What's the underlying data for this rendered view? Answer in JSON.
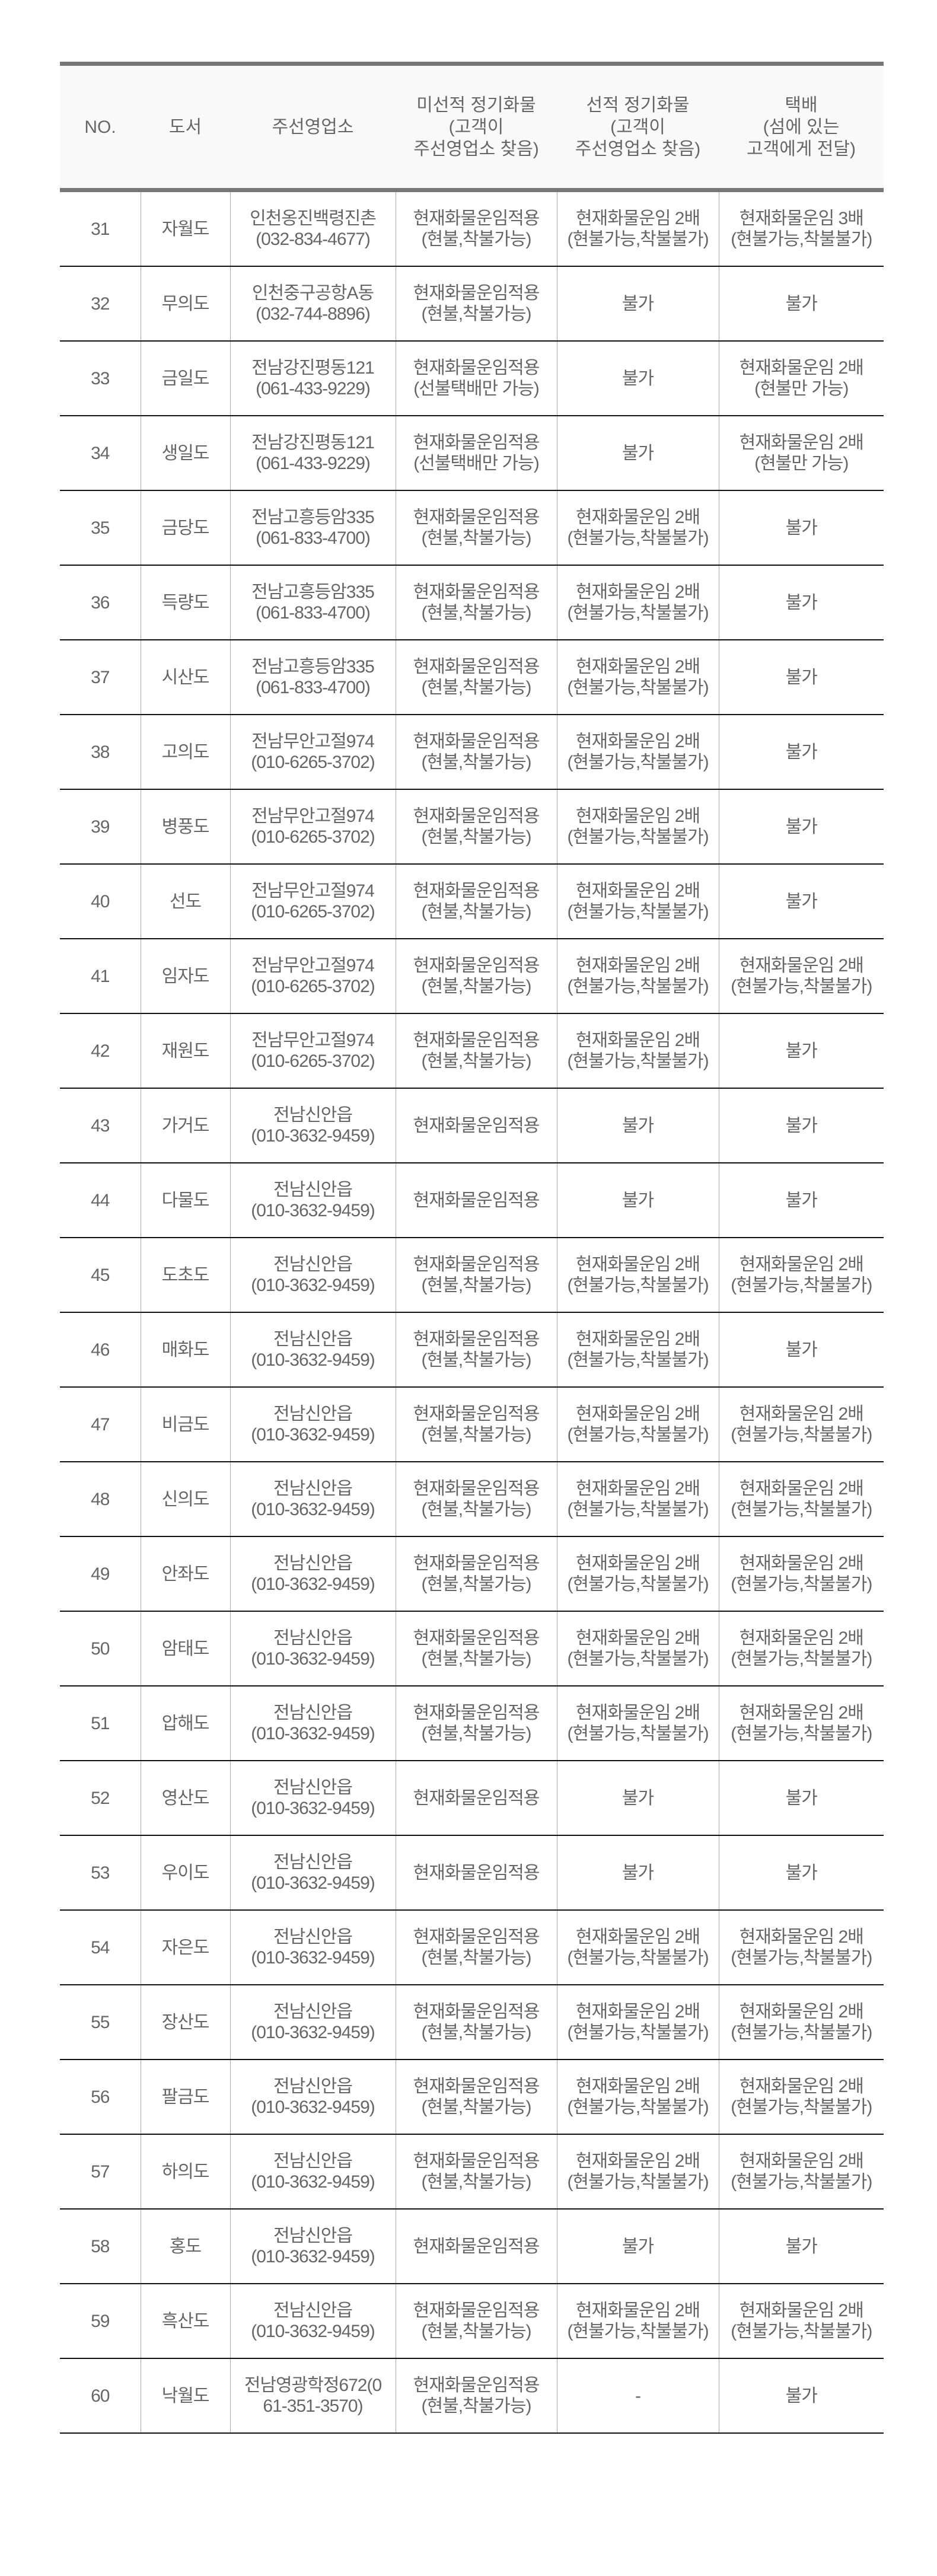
{
  "headers": [
    [
      "NO."
    ],
    [
      "도서"
    ],
    [
      "주선영업소"
    ],
    [
      "미선적 정기화물",
      "(고객이",
      "주선영업소 찾음)"
    ],
    [
      "선적 정기화물",
      "(고객이",
      "주선영업소 찾음)"
    ],
    [
      "택배",
      "(섬에 있는",
      "고객에게 전달)"
    ]
  ],
  "rows": [
    [
      [
        "31"
      ],
      [
        "자월도"
      ],
      [
        "인천옹진백령진촌",
        "(032-834-4677)"
      ],
      [
        "현재화물운임적용",
        "(현불,착불가능)"
      ],
      [
        "현재화물운임 2배",
        "(현불가능,착불불가)"
      ],
      [
        "현재화물운임 3배",
        "(현불가능,착불불가)"
      ]
    ],
    [
      [
        "32"
      ],
      [
        "무의도"
      ],
      [
        "인천중구공항A동",
        "(032-744-8896)"
      ],
      [
        "현재화물운임적용",
        "(현불,착불가능)"
      ],
      [
        "불가"
      ],
      [
        "불가"
      ]
    ],
    [
      [
        "33"
      ],
      [
        "금일도"
      ],
      [
        "전남강진평동121",
        "(061-433-9229)"
      ],
      [
        "현재화물운임적용",
        "(선불택배만 가능)"
      ],
      [
        "불가"
      ],
      [
        "현재화물운임 2배",
        "(현불만 가능)"
      ]
    ],
    [
      [
        "34"
      ],
      [
        "생일도"
      ],
      [
        "전남강진평동121",
        "(061-433-9229)"
      ],
      [
        "현재화물운임적용",
        "(선불택배만 가능)"
      ],
      [
        "불가"
      ],
      [
        "현재화물운임 2배",
        "(현불만 가능)"
      ]
    ],
    [
      [
        "35"
      ],
      [
        "금당도"
      ],
      [
        "전남고흥등암335",
        "(061-833-4700)"
      ],
      [
        "현재화물운임적용",
        "(현불,착불가능)"
      ],
      [
        "현재화물운임 2배",
        "(현불가능,착불불가)"
      ],
      [
        "불가"
      ]
    ],
    [
      [
        "36"
      ],
      [
        "득량도"
      ],
      [
        "전남고흥등암335",
        "(061-833-4700)"
      ],
      [
        "현재화물운임적용",
        "(현불,착불가능)"
      ],
      [
        "현재화물운임 2배",
        "(현불가능,착불불가)"
      ],
      [
        "불가"
      ]
    ],
    [
      [
        "37"
      ],
      [
        "시산도"
      ],
      [
        "전남고흥등암335",
        "(061-833-4700)"
      ],
      [
        "현재화물운임적용",
        "(현불,착불가능)"
      ],
      [
        "현재화물운임 2배",
        "(현불가능,착불불가)"
      ],
      [
        "불가"
      ]
    ],
    [
      [
        "38"
      ],
      [
        "고의도"
      ],
      [
        "전남무안고절974",
        "(010-6265-3702)"
      ],
      [
        "현재화물운임적용",
        "(현불,착불가능)"
      ],
      [
        "현재화물운임 2배",
        "(현불가능,착불불가)"
      ],
      [
        "불가"
      ]
    ],
    [
      [
        "39"
      ],
      [
        "병풍도"
      ],
      [
        "전남무안고절974",
        "(010-6265-3702)"
      ],
      [
        "현재화물운임적용",
        "(현불,착불가능)"
      ],
      [
        "현재화물운임 2배",
        "(현불가능,착불불가)"
      ],
      [
        "불가"
      ]
    ],
    [
      [
        "40"
      ],
      [
        "선도"
      ],
      [
        "전남무안고절974",
        "(010-6265-3702)"
      ],
      [
        "현재화물운임적용",
        "(현불,착불가능)"
      ],
      [
        "현재화물운임 2배",
        "(현불가능,착불불가)"
      ],
      [
        "불가"
      ]
    ],
    [
      [
        "41"
      ],
      [
        "임자도"
      ],
      [
        "전남무안고절974",
        "(010-6265-3702)"
      ],
      [
        "현재화물운임적용",
        "(현불,착불가능)"
      ],
      [
        "현재화물운임 2배",
        "(현불가능,착불불가)"
      ],
      [
        "현재화물운임 2배",
        "(현불가능,착불불가)"
      ]
    ],
    [
      [
        "42"
      ],
      [
        "재원도"
      ],
      [
        "전남무안고절974",
        "(010-6265-3702)"
      ],
      [
        "현재화물운임적용",
        "(현불,착불가능)"
      ],
      [
        "현재화물운임 2배",
        "(현불가능,착불불가)"
      ],
      [
        "불가"
      ]
    ],
    [
      [
        "43"
      ],
      [
        "가거도"
      ],
      [
        "전남신안읍",
        "(010-3632-9459)"
      ],
      [
        "현재화물운임적용"
      ],
      [
        "불가"
      ],
      [
        "불가"
      ]
    ],
    [
      [
        "44"
      ],
      [
        "다물도"
      ],
      [
        "전남신안읍",
        "(010-3632-9459)"
      ],
      [
        "현재화물운임적용"
      ],
      [
        "불가"
      ],
      [
        "불가"
      ]
    ],
    [
      [
        "45"
      ],
      [
        "도초도"
      ],
      [
        "전남신안읍",
        "(010-3632-9459)"
      ],
      [
        "현재화물운임적용",
        "(현불,착불가능)"
      ],
      [
        "현재화물운임 2배",
        "(현불가능,착불불가)"
      ],
      [
        "현재화물운임 2배",
        "(현불가능,착불불가)"
      ]
    ],
    [
      [
        "46"
      ],
      [
        "매화도"
      ],
      [
        "전남신안읍",
        "(010-3632-9459)"
      ],
      [
        "현재화물운임적용",
        "(현불,착불가능)"
      ],
      [
        "현재화물운임 2배",
        "(현불가능,착불불가)"
      ],
      [
        "불가"
      ]
    ],
    [
      [
        "47"
      ],
      [
        "비금도"
      ],
      [
        "전남신안읍",
        "(010-3632-9459)"
      ],
      [
        "현재화물운임적용",
        "(현불,착불가능)"
      ],
      [
        "현재화물운임 2배",
        "(현불가능,착불불가)"
      ],
      [
        "현재화물운임 2배",
        "(현불가능,착불불가)"
      ]
    ],
    [
      [
        "48"
      ],
      [
        "신의도"
      ],
      [
        "전남신안읍",
        "(010-3632-9459)"
      ],
      [
        "현재화물운임적용",
        "(현불,착불가능)"
      ],
      [
        "현재화물운임 2배",
        "(현불가능,착불불가)"
      ],
      [
        "현재화물운임 2배",
        "(현불가능,착불불가)"
      ]
    ],
    [
      [
        "49"
      ],
      [
        "안좌도"
      ],
      [
        "전남신안읍",
        "(010-3632-9459)"
      ],
      [
        "현재화물운임적용",
        "(현불,착불가능)"
      ],
      [
        "현재화물운임 2배",
        "(현불가능,착불불가)"
      ],
      [
        "현재화물운임 2배",
        "(현불가능,착불불가)"
      ]
    ],
    [
      [
        "50"
      ],
      [
        "암태도"
      ],
      [
        "전남신안읍",
        "(010-3632-9459)"
      ],
      [
        "현재화물운임적용",
        "(현불,착불가능)"
      ],
      [
        "현재화물운임 2배",
        "(현불가능,착불불가)"
      ],
      [
        "현재화물운임 2배",
        "(현불가능,착불불가)"
      ]
    ],
    [
      [
        "51"
      ],
      [
        "압해도"
      ],
      [
        "전남신안읍",
        "(010-3632-9459)"
      ],
      [
        "현재화물운임적용",
        "(현불,착불가능)"
      ],
      [
        "현재화물운임 2배",
        "(현불가능,착불불가)"
      ],
      [
        "현재화물운임 2배",
        "(현불가능,착불불가)"
      ]
    ],
    [
      [
        "52"
      ],
      [
        "영산도"
      ],
      [
        "전남신안읍",
        "(010-3632-9459)"
      ],
      [
        "현재화물운임적용"
      ],
      [
        "불가"
      ],
      [
        "불가"
      ]
    ],
    [
      [
        "53"
      ],
      [
        "우이도"
      ],
      [
        "전남신안읍",
        "(010-3632-9459)"
      ],
      [
        "현재화물운임적용"
      ],
      [
        "불가"
      ],
      [
        "불가"
      ]
    ],
    [
      [
        "54"
      ],
      [
        "자은도"
      ],
      [
        "전남신안읍",
        "(010-3632-9459)"
      ],
      [
        "현재화물운임적용",
        "(현불,착불가능)"
      ],
      [
        "현재화물운임 2배",
        "(현불가능,착불불가)"
      ],
      [
        "현재화물운임 2배",
        "(현불가능,착불불가)"
      ]
    ],
    [
      [
        "55"
      ],
      [
        "장산도"
      ],
      [
        "전남신안읍",
        "(010-3632-9459)"
      ],
      [
        "현재화물운임적용",
        "(현불,착불가능)"
      ],
      [
        "현재화물운임 2배",
        "(현불가능,착불불가)"
      ],
      [
        "현재화물운임 2배",
        "(현불가능,착불불가)"
      ]
    ],
    [
      [
        "56"
      ],
      [
        "팔금도"
      ],
      [
        "전남신안읍",
        "(010-3632-9459)"
      ],
      [
        "현재화물운임적용",
        "(현불,착불가능)"
      ],
      [
        "현재화물운임 2배",
        "(현불가능,착불불가)"
      ],
      [
        "현재화물운임 2배",
        "(현불가능,착불불가)"
      ]
    ],
    [
      [
        "57"
      ],
      [
        "하의도"
      ],
      [
        "전남신안읍",
        "(010-3632-9459)"
      ],
      [
        "현재화물운임적용",
        "(현불,착불가능)"
      ],
      [
        "현재화물운임 2배",
        "(현불가능,착불불가)"
      ],
      [
        "현재화물운임 2배",
        "(현불가능,착불불가)"
      ]
    ],
    [
      [
        "58"
      ],
      [
        "홍도"
      ],
      [
        "전남신안읍",
        "(010-3632-9459)"
      ],
      [
        "현재화물운임적용"
      ],
      [
        "불가"
      ],
      [
        "불가"
      ]
    ],
    [
      [
        "59"
      ],
      [
        "흑산도"
      ],
      [
        "전남신안읍",
        "(010-3632-9459)"
      ],
      [
        "현재화물운임적용",
        "(현불,착불가능)"
      ],
      [
        "현재화물운임 2배",
        "(현불가능,착불불가)"
      ],
      [
        "현재화물운임 2배",
        "(현불가능,착불불가)"
      ]
    ],
    [
      [
        "60"
      ],
      [
        "낙월도"
      ],
      [
        "전남영광학정672(0",
        "61-351-3570)"
      ],
      [
        "현재화물운임적용",
        "(현불,착불가능)"
      ],
      [
        "-"
      ],
      [
        "불가"
      ]
    ]
  ]
}
